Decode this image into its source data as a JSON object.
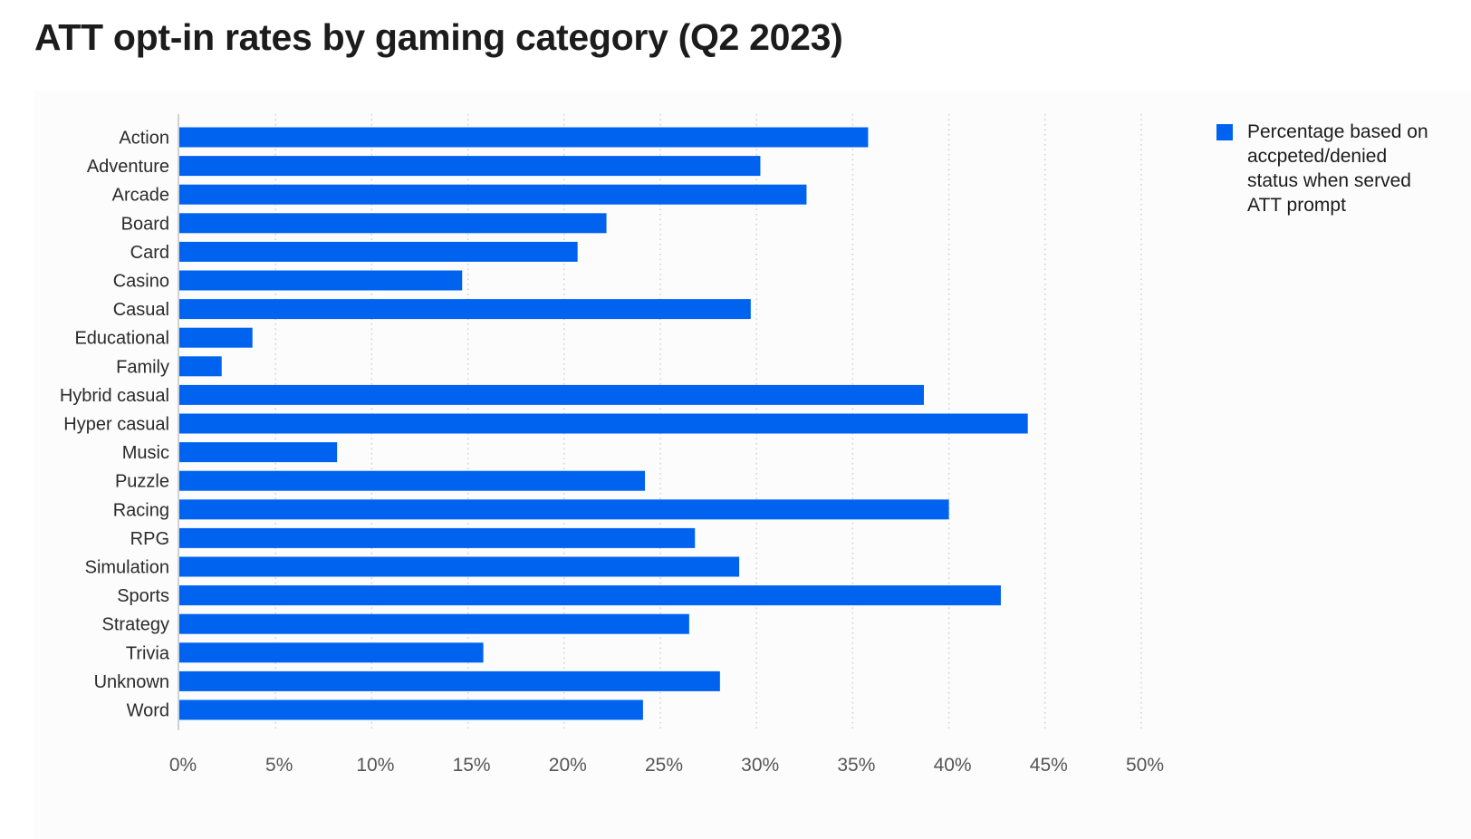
{
  "chart_data": {
    "type": "bar",
    "orientation": "horizontal",
    "title": "ATT opt-in rates by gaming category (Q2 2023)",
    "categories": [
      "Action",
      "Adventure",
      "Arcade",
      "Board",
      "Card",
      "Casino",
      "Casual",
      "Educational",
      "Family",
      "Hybrid casual",
      "Hyper casual",
      "Music",
      "Puzzle",
      "Racing",
      "RPG",
      "Simulation",
      "Sports",
      "Strategy",
      "Trivia",
      "Unknown",
      "Word"
    ],
    "series": [
      {
        "name": "Percentage based on accpeted/denied status when served ATT prompt",
        "values": [
          35.8,
          30.2,
          32.6,
          22.2,
          20.7,
          14.7,
          29.7,
          3.8,
          2.2,
          38.7,
          44.1,
          8.2,
          24.2,
          40.0,
          26.8,
          29.1,
          42.7,
          26.5,
          15.8,
          28.1,
          24.1
        ]
      }
    ],
    "xticks": [
      "0%",
      "5%",
      "10%",
      "15%",
      "20%",
      "25%",
      "30%",
      "35%",
      "40%",
      "45%",
      "50%"
    ],
    "xlim": [
      0,
      50
    ],
    "xlabel": "",
    "ylabel": "",
    "grid": "vertical-dotted",
    "legend": "top-right"
  },
  "colors": {
    "bar": "#0063F0",
    "gridline": "#c6c9cf",
    "axis": "#bfc3c9",
    "label_text": "#2b2b2b",
    "tick_text": "#555555"
  }
}
